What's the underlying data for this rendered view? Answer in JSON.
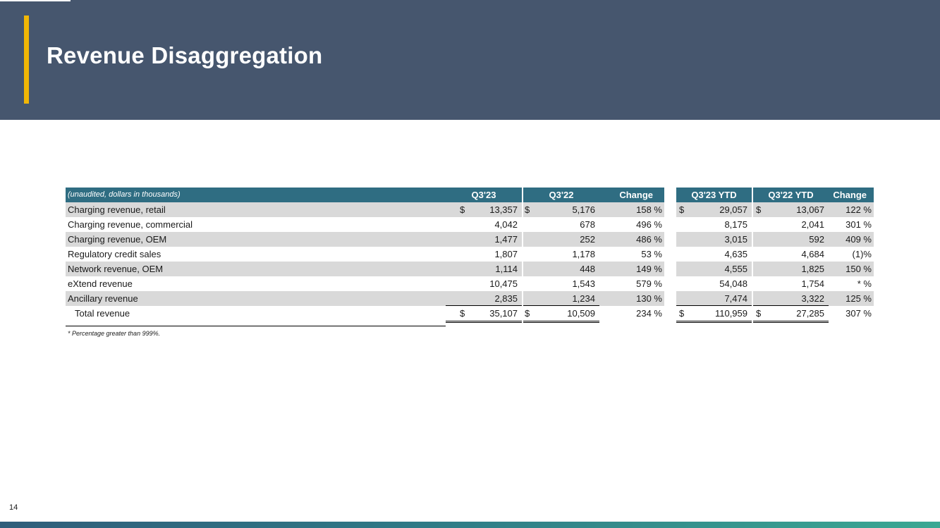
{
  "slide": {
    "title": "Revenue Disaggregation",
    "page_number": "14",
    "footnote": "* Percentage greater than 999%.",
    "colors": {
      "header_bg": "#46566e",
      "accent": "#f2b705",
      "table_header_bg": "#2f6d82",
      "row_shade": "#d9d9d9"
    }
  },
  "table": {
    "caption": "(unaudited, dollars in thousands)",
    "columns": [
      "Q3'23",
      "Q3'22",
      "Change",
      "Q3'23 YTD",
      "Q3'22 YTD",
      "Change"
    ],
    "rows": [
      {
        "label": "Charging revenue, retail",
        "q23": "13,357",
        "q22": "5,176",
        "chg": "158 %",
        "y23": "29,057",
        "y22": "13,067",
        "ychg": "122 %",
        "dollar": "$"
      },
      {
        "label": "Charging revenue, commercial",
        "q23": "4,042",
        "q22": "678",
        "chg": "496 %",
        "y23": "8,175",
        "y22": "2,041",
        "ychg": "301 %"
      },
      {
        "label": "Charging revenue, OEM",
        "q23": "1,477",
        "q22": "252",
        "chg": "486 %",
        "y23": "3,015",
        "y22": "592",
        "ychg": "409 %"
      },
      {
        "label": "Regulatory credit sales",
        "q23": "1,807",
        "q22": "1,178",
        "chg": "53 %",
        "y23": "4,635",
        "y22": "4,684",
        "ychg": "(1)%"
      },
      {
        "label": "Network revenue, OEM",
        "q23": "1,114",
        "q22": "448",
        "chg": "149 %",
        "y23": "4,555",
        "y22": "1,825",
        "ychg": "150 %"
      },
      {
        "label": "eXtend revenue",
        "q23": "10,475",
        "q22": "1,543",
        "chg": "579 %",
        "y23": "54,048",
        "y22": "1,754",
        "ychg": "* %"
      },
      {
        "label": "Ancillary revenue",
        "q23": "2,835",
        "q22": "1,234",
        "chg": "130 %",
        "y23": "7,474",
        "y22": "3,322",
        "ychg": "125 %"
      }
    ],
    "total": {
      "label": "Total revenue",
      "q23": "35,107",
      "q22": "10,509",
      "chg": "234 %",
      "y23": "110,959",
      "y22": "27,285",
      "ychg": "307 %",
      "dollar": "$"
    }
  }
}
